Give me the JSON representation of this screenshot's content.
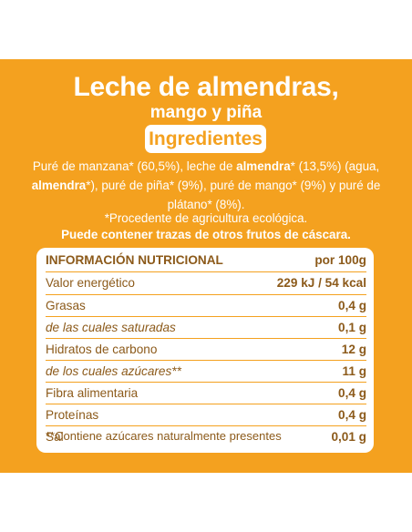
{
  "product": {
    "title_line1": "Leche de almendras,",
    "title_line2": "mango y piña",
    "ingredients_label": "Ingredientes"
  },
  "ingredients": {
    "p1": "Puré de manzana* (60,5%), leche de ",
    "b1": "almendra",
    "p2": "* (13,5%) (agua, ",
    "b2": "almendra",
    "p3": "*), puré de piña* (9%), puré de mango* (9%) y puré de plátano* (8%).",
    "note": "*Procedente de agricultura ecológica.",
    "warning": "Puede contener trazas de otros frutos de cáscara."
  },
  "nutrition": {
    "header_label": "INFORMACIÓN NUTRICIONAL",
    "header_value": "por 100g",
    "rows": [
      {
        "label": "Valor energético",
        "value": "229 kJ / 54 kcal"
      },
      {
        "label": "Grasas",
        "value": "0,4 g"
      },
      {
        "label": "de las cuales saturadas",
        "value": "0,1 g"
      },
      {
        "label": "Hidratos de carbono",
        "value": "12 g"
      },
      {
        "label": "de los cuales azúcares**",
        "value": "11 g"
      },
      {
        "label": "Fibra alimentaria",
        "value": "0,4 g"
      },
      {
        "label": "Proteínas",
        "value": "0,4 g"
      },
      {
        "label": "Sal",
        "value": "0,01 g"
      }
    ],
    "footnote": "**Contiene azúcares naturalmente presentes"
  },
  "colors": {
    "accent": "#f4a11f",
    "text_brown": "#8c5a1a"
  }
}
